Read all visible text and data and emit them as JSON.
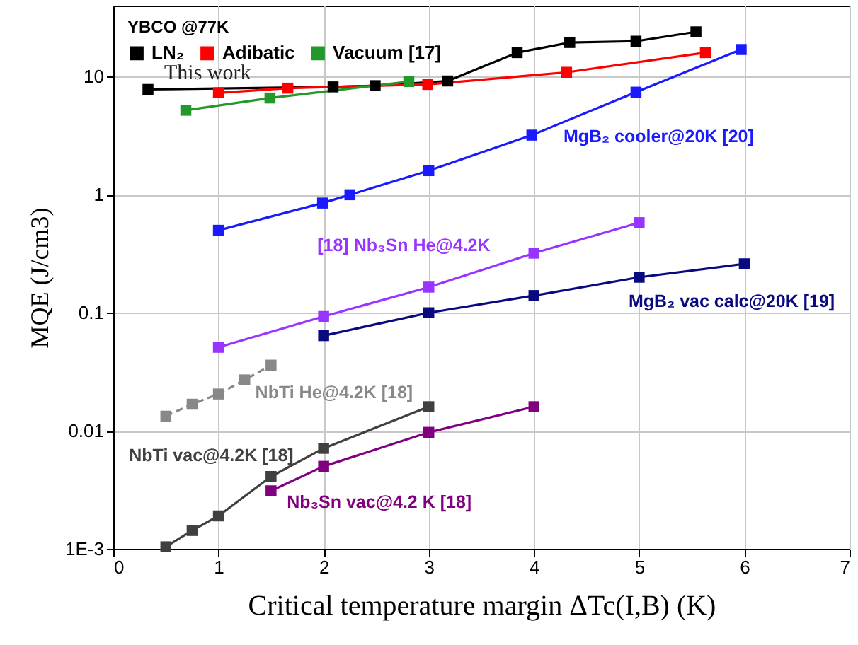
{
  "chart_data": {
    "type": "line",
    "xlabel": "Critical temperature margin ΔTc(I,B) (K)",
    "ylabel": "MQE (J/cm3)",
    "legend_title": "YBCO @77K",
    "legend": "top left",
    "log": "y",
    "grid": true,
    "marker": "square",
    "line_style": "solid",
    "xlim": [
      0,
      7
    ],
    "xticks": [
      0,
      1,
      2,
      3,
      4,
      5,
      6,
      7
    ],
    "ylim": [
      0.001,
      40
    ],
    "yticks": [
      {
        "value": 0.001,
        "label": "1E-3"
      },
      0.01,
      0.1,
      1,
      10
    ],
    "annotations": [
      "This work"
    ],
    "series": [
      {
        "name": "LN₂",
        "color": "#000000",
        "x": [
          0.33,
          2.09,
          2.49,
          3.18,
          3.84,
          4.34,
          4.97,
          5.54
        ],
        "values": [
          7.8,
          8.2,
          8.4,
          9.2,
          16,
          19.5,
          20,
          24
        ]
      },
      {
        "name": "Adibatic",
        "color": "#ff0000",
        "x": [
          1.0,
          1.66,
          2.99,
          4.31,
          5.63
        ],
        "values": [
          7.3,
          8.0,
          8.6,
          10.9,
          16
        ]
      },
      {
        "name": "Vacuum [17]",
        "color": "#22992a",
        "x": [
          0.69,
          1.49,
          2.81
        ],
        "values": [
          5.2,
          6.6,
          9.1
        ]
      },
      {
        "name": "MgB₂ cooler@20K [20]",
        "color": "#1a1aff",
        "x": [
          1,
          1.99,
          2.25,
          3,
          3.98,
          4.97,
          5.97
        ],
        "values": [
          0.5,
          0.85,
          1.0,
          1.6,
          3.2,
          7.4,
          17
        ]
      },
      {
        "name": "[18] Nb₃Sn He@4.2K",
        "color": "#9933ff",
        "x": [
          1,
          2,
          3,
          4,
          5
        ],
        "values": [
          0.051,
          0.093,
          0.165,
          0.32,
          0.58
        ]
      },
      {
        "name": "MgB₂ vac calc@20K [19]",
        "color": "#0a0a80",
        "x": [
          2,
          3,
          4,
          5,
          6
        ],
        "values": [
          0.064,
          0.1,
          0.14,
          0.2,
          0.26
        ]
      },
      {
        "name": "NbTi He@4.2K [18]",
        "color": "#888888",
        "line_style": "dashed",
        "x": [
          0.5,
          0.75,
          1,
          1.25,
          1.5
        ],
        "values": [
          0.0133,
          0.0168,
          0.0205,
          0.027,
          0.036
        ]
      },
      {
        "name": "NbTi vac@4.2K [18]",
        "color": "#404040",
        "x": [
          0.5,
          0.75,
          1,
          1.5,
          2,
          3
        ],
        "values": [
          0.00104,
          0.00143,
          0.0019,
          0.0041,
          0.0071,
          0.016
        ]
      },
      {
        "name": "Nb₃Sn vac@4.2 K [18]",
        "color": "#800080",
        "x": [
          1.5,
          2,
          3,
          4
        ],
        "values": [
          0.0031,
          0.005,
          0.0097,
          0.016
        ]
      }
    ]
  }
}
